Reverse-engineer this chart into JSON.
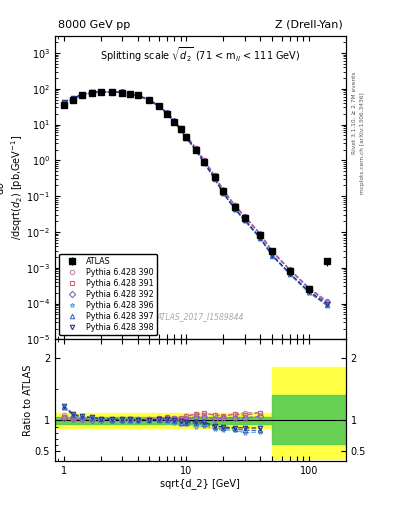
{
  "title_left": "8000 GeV pp",
  "title_right": "Z (Drell-Yan)",
  "plot_title": "Splitting scale $\\sqrt{d_2}$ (71 < m$_{ll}$ < 111 GeV)",
  "ylabel_main": "d$\\sigma$\n/dsqrt($\\overline{d_2}$) [pb,GeV$^{-1}$]",
  "ylabel_ratio": "Ratio to ATLAS",
  "xlabel": "sqrt{d_2} [GeV]",
  "watermark": "ATLAS_2017_I1589844",
  "right_label_1": "Rivet 3.1.10, ≥ 2.7M events",
  "right_label_2": "mcplots.cern.ch [arXiv:1306.3436]",
  "x_data": [
    1.0,
    1.2,
    1.4,
    1.7,
    2.0,
    2.5,
    3.0,
    3.5,
    4.0,
    5.0,
    6.0,
    7.0,
    8.0,
    9.0,
    10.0,
    12.0,
    14.0,
    17.0,
    20.0,
    25.0,
    30.0,
    40.0,
    50.0,
    70.0,
    100.0,
    140.0
  ],
  "atlas_y": [
    35.0,
    50.0,
    65.0,
    75.0,
    80.0,
    80.0,
    78.0,
    72.0,
    65.0,
    48.0,
    32.0,
    20.0,
    12.0,
    7.5,
    4.5,
    2.0,
    0.9,
    0.35,
    0.14,
    0.05,
    0.025,
    0.008,
    0.003,
    0.0008,
    0.00025,
    0.0015
  ],
  "atlas_yerr": [
    3.0,
    4.0,
    5.0,
    6.0,
    6.5,
    6.5,
    6.5,
    6.0,
    5.5,
    4.0,
    3.0,
    2.0,
    1.2,
    0.8,
    0.5,
    0.22,
    0.1,
    0.04,
    0.015,
    0.006,
    0.003,
    0.001,
    0.0004,
    0.0001,
    5e-05,
    0.0004
  ],
  "mc_x": [
    1.0,
    1.2,
    1.4,
    1.7,
    2.0,
    2.5,
    3.0,
    3.5,
    4.0,
    5.0,
    6.0,
    7.0,
    8.0,
    9.0,
    10.0,
    12.0,
    14.0,
    17.0,
    20.0,
    25.0,
    30.0,
    40.0,
    50.0,
    70.0,
    100.0,
    140.0
  ],
  "py390_y": [
    38.0,
    52.0,
    67.0,
    77.0,
    81.0,
    81.0,
    79.0,
    73.0,
    66.0,
    49.0,
    33.0,
    21.0,
    12.5,
    7.8,
    4.8,
    2.2,
    1.0,
    0.38,
    0.15,
    0.055,
    0.028,
    0.009,
    0.003,
    0.0009,
    0.00028,
    0.00012
  ],
  "py391_y": [
    37.0,
    51.5,
    66.5,
    76.5,
    81.0,
    80.5,
    79.0,
    73.0,
    66.0,
    49.0,
    33.0,
    21.0,
    12.5,
    7.8,
    4.8,
    2.2,
    1.0,
    0.38,
    0.15,
    0.055,
    0.027,
    0.009,
    0.003,
    0.00088,
    0.00027,
    0.00011
  ],
  "py392_y": [
    36.5,
    51.0,
    66.0,
    76.0,
    80.5,
    80.5,
    78.5,
    72.5,
    65.5,
    48.5,
    32.5,
    20.5,
    12.2,
    7.6,
    4.6,
    2.1,
    0.95,
    0.36,
    0.145,
    0.052,
    0.026,
    0.0085,
    0.0028,
    0.00085,
    0.00026,
    0.00011
  ],
  "py396_y": [
    42.0,
    54.0,
    68.0,
    77.5,
    81.0,
    80.5,
    78.5,
    72.0,
    64.5,
    47.5,
    31.5,
    19.5,
    11.5,
    7.0,
    4.2,
    1.8,
    0.82,
    0.3,
    0.118,
    0.042,
    0.02,
    0.0065,
    0.0022,
    0.00065,
    0.0002,
    9e-05
  ],
  "py397_y": [
    42.5,
    54.5,
    68.5,
    78.0,
    81.5,
    81.0,
    79.0,
    72.5,
    65.0,
    48.0,
    32.0,
    20.0,
    11.8,
    7.2,
    4.3,
    1.9,
    0.85,
    0.31,
    0.122,
    0.043,
    0.021,
    0.0067,
    0.0022,
    0.00067,
    0.00021,
    9e-05
  ],
  "py398_y": [
    43.0,
    55.0,
    69.0,
    78.5,
    82.0,
    81.5,
    79.5,
    73.0,
    65.5,
    48.5,
    32.5,
    20.5,
    12.0,
    7.4,
    4.4,
    1.95,
    0.87,
    0.32,
    0.125,
    0.044,
    0.022,
    0.007,
    0.0023,
    0.00069,
    0.00022,
    0.0001
  ],
  "ratio_x": [
    1.0,
    1.2,
    1.4,
    1.7,
    2.0,
    2.5,
    3.0,
    3.5,
    4.0,
    5.0,
    6.0,
    7.0,
    8.0,
    9.0,
    10.0,
    12.0,
    14.0,
    17.0,
    20.0,
    25.0,
    30.0,
    40.0
  ],
  "ratio_390": [
    1.086,
    1.04,
    1.031,
    1.027,
    1.013,
    1.013,
    1.013,
    1.014,
    1.015,
    1.021,
    1.031,
    1.05,
    1.042,
    1.04,
    1.067,
    1.1,
    1.11,
    1.086,
    1.071,
    1.1,
    1.12,
    1.125
  ],
  "ratio_391": [
    1.057,
    1.03,
    1.023,
    1.02,
    1.013,
    1.006,
    1.013,
    1.014,
    1.015,
    1.021,
    1.031,
    1.05,
    1.042,
    1.04,
    1.067,
    1.1,
    1.11,
    1.086,
    1.071,
    1.1,
    1.08,
    1.125
  ],
  "ratio_392": [
    1.043,
    1.02,
    1.015,
    1.013,
    1.006,
    1.006,
    1.006,
    1.007,
    1.008,
    1.01,
    1.016,
    1.025,
    1.017,
    1.013,
    1.022,
    1.05,
    1.056,
    1.029,
    1.036,
    1.04,
    1.04,
    1.0625
  ],
  "ratio_396": [
    1.2,
    1.08,
    1.046,
    1.033,
    1.013,
    1.006,
    1.006,
    1.0,
    0.992,
    0.99,
    0.984,
    0.975,
    0.958,
    0.933,
    0.933,
    0.9,
    0.911,
    0.857,
    0.843,
    0.84,
    0.8,
    0.8125
  ],
  "ratio_397": [
    1.214,
    1.09,
    1.054,
    1.04,
    1.019,
    1.013,
    1.013,
    1.007,
    1.0,
    1.0,
    1.0,
    1.0,
    0.983,
    0.96,
    0.956,
    0.95,
    0.944,
    0.886,
    0.871,
    0.86,
    0.84,
    0.8375
  ],
  "ratio_398": [
    1.229,
    1.1,
    1.062,
    1.047,
    1.025,
    1.019,
    1.019,
    1.014,
    1.008,
    1.01,
    1.016,
    1.025,
    1.0,
    0.987,
    0.978,
    0.975,
    0.967,
    0.914,
    0.893,
    0.88,
    0.88,
    0.875
  ],
  "colors": {
    "atlas": "#000000",
    "py390": "#cc88aa",
    "py391": "#cc6677",
    "py392": "#8866bb",
    "py396": "#66aadd",
    "py397": "#4466bb",
    "py398": "#223388"
  },
  "markers": {
    "py390": "o",
    "py391": "s",
    "py392": "D",
    "py396": "*",
    "py397": "^",
    "py398": "v"
  },
  "xlim": [
    0.85,
    200.0
  ],
  "ylim_main": [
    1e-05,
    3000.0
  ],
  "ylim_ratio": [
    0.35,
    2.3
  ],
  "ratio_yticks": [
    0.5,
    1.0,
    2.0
  ],
  "ratio_ylim_show": [
    0.4,
    2.2
  ]
}
